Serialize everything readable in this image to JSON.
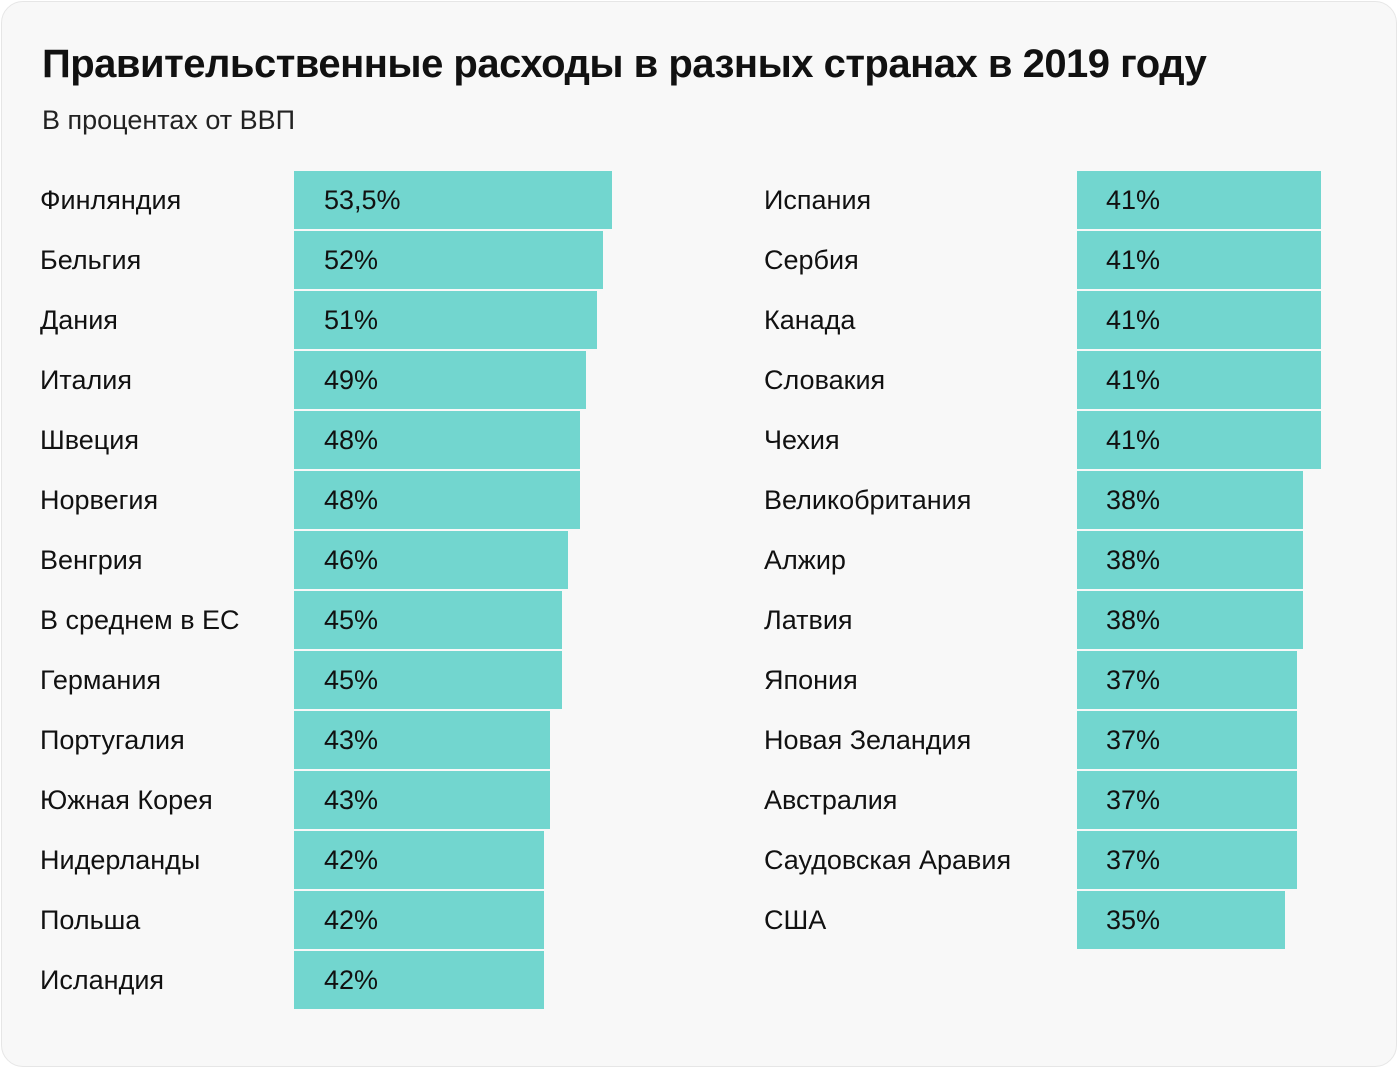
{
  "chart_data": {
    "type": "bar",
    "orientation": "horizontal",
    "title": "Правительственные расходы в разных странах в 2019 году",
    "subtitle": "В процентах от ВВП",
    "xlabel": "",
    "ylabel": "",
    "unit": "%",
    "bar_color": "#72d6cf",
    "xlim": [
      0,
      53.5
    ],
    "grid": false,
    "legend": "none",
    "columns": [
      {
        "categories": [
          "Финляндия",
          "Бельгия",
          "Дания",
          "Италия",
          "Швеция",
          "Норвегия",
          "Венгрия",
          "В среднем в ЕС",
          "Германия",
          "Португалия",
          "Южная Корея",
          "Нидерланды",
          "Польша",
          "Исландия"
        ],
        "values": [
          53.5,
          52,
          51,
          49,
          48,
          48,
          46,
          45,
          45,
          43,
          43,
          42,
          42,
          42
        ],
        "labels": [
          "53,5%",
          "52%",
          "51%",
          "49%",
          "48%",
          "48%",
          "46%",
          "45%",
          "45%",
          "43%",
          "43%",
          "42%",
          "42%",
          "42%"
        ]
      },
      {
        "categories": [
          "Испания",
          "Сербия",
          "Канада",
          "Словакия",
          "Чехия",
          "Великобритания",
          "Алжир",
          "Латвия",
          "Япония",
          "Новая Зеландия",
          "Австралия",
          "Саудовская Аравия",
          "США"
        ],
        "values": [
          41,
          41,
          41,
          41,
          41,
          38,
          38,
          38,
          37,
          37,
          37,
          37,
          35
        ],
        "labels": [
          "41%",
          "41%",
          "41%",
          "41%",
          "41%",
          "38%",
          "38%",
          "38%",
          "37%",
          "37%",
          "37%",
          "37%",
          "35%"
        ]
      }
    ]
  }
}
